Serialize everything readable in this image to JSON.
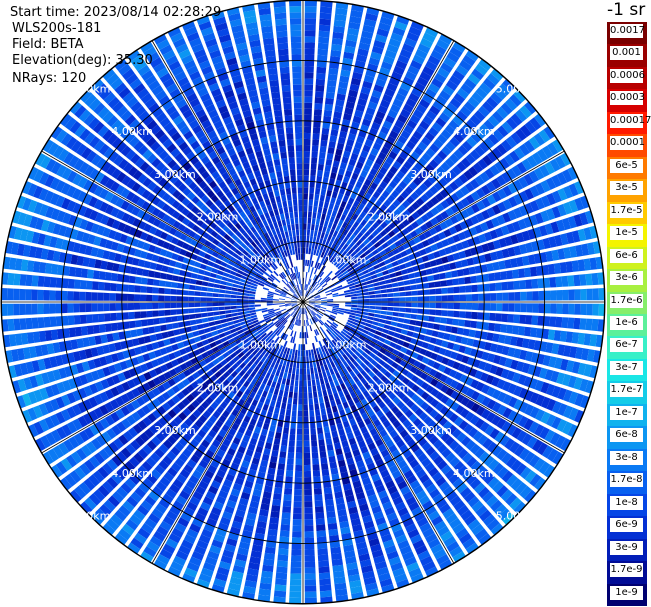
{
  "info": {
    "start_time": "Start time: 2023/08/14 02:28:29",
    "instrument": "WLS200s-181",
    "field": "Field: BETA",
    "elevation": "Elevation(deg): 35.30",
    "nrays": "NRays: 120"
  },
  "colorbar": {
    "title": "-1 sr",
    "labels": [
      "0.0017",
      "0.001",
      "0.0006",
      "0.0003",
      "0.00017",
      "0.0001",
      "6e-5",
      "3e-5",
      "1.7e-5",
      "1e-5",
      "6e-6",
      "3e-6",
      "1.7e-6",
      "1e-6",
      "6e-7",
      "3e-7",
      "1.7e-7",
      "1e-7",
      "6e-8",
      "3e-8",
      "1.7e-8",
      "1e-8",
      "6e-9",
      "3e-9",
      "1.7e-9",
      "1e-9"
    ],
    "colors": [
      "#7a0000",
      "#9a0000",
      "#b80000",
      "#d60000",
      "#ff1a00",
      "#ff4a00",
      "#ff7a00",
      "#ffa200",
      "#ffca00",
      "#f4f400",
      "#cff21e",
      "#a8f040",
      "#86ee6a",
      "#5cf09a",
      "#38f0c8",
      "#1ae6e6",
      "#14cce8",
      "#10b2ee",
      "#0c96f2",
      "#0a7af4",
      "#0860f0",
      "#0646e6",
      "#0430d4",
      "#021eb8",
      "#010c96",
      "#000070"
    ]
  },
  "chart_data": {
    "type": "heatmap",
    "projection": "polar (PPI)",
    "field": "BETA",
    "instrument": "WLS200s-181",
    "start_time": "2023/08/14 02:28:29",
    "elevation_deg": 35.3,
    "n_rays": 120,
    "range_rings_km": [
      1,
      2,
      3,
      4,
      5
    ],
    "range_ring_labels": [
      "1.00km",
      "2.00km",
      "3.00km",
      "4.00km",
      "5.00km"
    ],
    "max_range_km": 5.0,
    "azimuth_spokes_deg": [
      0,
      30,
      60,
      90,
      120,
      150,
      180,
      210,
      240,
      270,
      300,
      330
    ],
    "colorscale": "log",
    "color_range": [
      1e-09,
      0.0017
    ],
    "typical_value_by_range_km": [
      {
        "range_km": 0.5,
        "value": 6e-09
      },
      {
        "range_km": 1.5,
        "value": 6e-09
      },
      {
        "range_km": 2.5,
        "value": 6e-09
      },
      {
        "range_km": 3.5,
        "value": 8e-09
      },
      {
        "range_km": 4.5,
        "value": 1.7e-08
      },
      {
        "range_km": 5.0,
        "value": 3e-08
      }
    ]
  }
}
